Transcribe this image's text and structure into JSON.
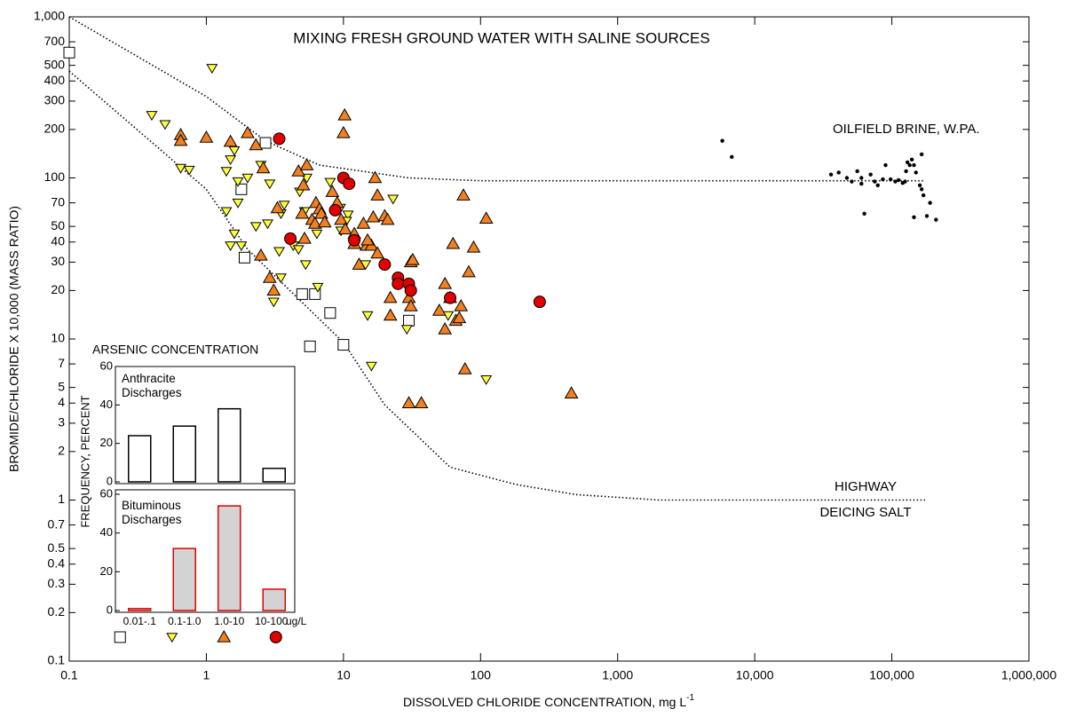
{
  "chart_data": [
    {
      "type": "scatter",
      "title": "MIXING FRESH GROUND WATER WITH SALINE SOURCES",
      "xlabel": "DISSOLVED CHLORIDE CONCENTRATION, mg L",
      "xlabel_superscript": "-1",
      "ylabel": "BROMIDE/CHLORIDE X 10,000 (MASS RATIO)",
      "xscale": "log",
      "yscale": "log",
      "xlim": [
        0.1,
        1000000
      ],
      "ylim": [
        0.1,
        1000
      ],
      "xticks": [
        0.1,
        1,
        10,
        100,
        {
          "value": 1000,
          "label": "1,000"
        },
        {
          "value": 10000,
          "label": "10,000"
        },
        {
          "value": 100000,
          "label": "100,000"
        },
        {
          "value": 1000000,
          "label": "1,000,000"
        }
      ],
      "yticks": [
        0.1,
        0.2,
        0.3,
        0.4,
        0.5,
        0.7,
        1,
        2,
        3,
        4,
        5,
        7,
        10,
        20,
        30,
        40,
        50,
        70,
        100,
        200,
        300,
        400,
        500,
        700,
        {
          "value": 1000,
          "label": "1,000"
        }
      ],
      "annotations": [
        "OILFIELD BRINE, W.PA.",
        "HIGHWAY",
        "DEICING SALT"
      ],
      "curves": [
        {
          "color": "#000000",
          "x": [
            0.1,
            1,
            2.7,
            6.7,
            30,
            100,
            175000
          ],
          "y": [
            1000,
            320,
            170,
            120,
            100,
            96,
            96
          ]
        },
        {
          "color": "#000000",
          "x": [
            0.1,
            1,
            2,
            10,
            20,
            60,
            180,
            500,
            2000,
            175000
          ],
          "y": [
            460,
            85,
            36,
            9.5,
            3.9,
            1.6,
            1.25,
            1.08,
            1.0,
            1.0
          ]
        }
      ],
      "series": [
        {
          "marker": "square",
          "color": "#ffffff",
          "x": [
            0.1,
            2.7,
            1.8,
            1.9,
            5,
            6.2,
            8,
            5.7,
            10,
            30
          ],
          "y": [
            600,
            165,
            85,
            32,
            19,
            19,
            14.5,
            9,
            9.2,
            13
          ]
        },
        {
          "marker": "triangle-down",
          "color": "#ffff40",
          "x": [
            1.1,
            0.4,
            0.5,
            0.65,
            0.75,
            1.5,
            1.4,
            1.6,
            1.7,
            2.0,
            2.5,
            2.9,
            1.4,
            1.7,
            2.3,
            2.8,
            1.6,
            1.5,
            1.8,
            3.4,
            4.3,
            3.5,
            3.7,
            4.7,
            5.3,
            3.1,
            3.5,
            4.8,
            5.4,
            5.2,
            6.4,
            6.5,
            8.0,
            9.5,
            10.8,
            9.6,
            15,
            16,
            29,
            14.5,
            23,
            58,
            110,
            10.5
          ],
          "y": [
            480,
            245,
            215,
            115,
            112,
            130,
            110,
            148,
            95,
            100,
            120,
            92,
            62,
            70,
            50,
            52,
            45,
            38,
            38,
            35,
            38,
            60,
            68,
            36,
            29,
            17,
            24,
            82,
            100,
            62,
            45,
            21,
            94,
            65,
            59,
            47,
            14,
            6.8,
            11.5,
            29,
            74,
            14,
            5.6,
            54
          ]
        },
        {
          "marker": "triangle-up",
          "color": "#f08020",
          "x": [
            0.65,
            0.65,
            1.0,
            1.5,
            2.0,
            2.3,
            2.6,
            3.3,
            2.5,
            2.9,
            3.1,
            4.7,
            5.4,
            5.1,
            5.0,
            5.9,
            6.3,
            6.7,
            6.2,
            6.9,
            7.3,
            5.2,
            8.3,
            9.0,
            9.6,
            10.2,
            10,
            10.3,
            12,
            12,
            13,
            14,
            14.7,
            16,
            17,
            17.7,
            16.5,
            17.7,
            20,
            21,
            22,
            22,
            31,
            32,
            30,
            31,
            50,
            55,
            55,
            60,
            63,
            66,
            70,
            72,
            75,
            77,
            82,
            89,
            110,
            460,
            30,
            37,
            15
          ],
          "y": [
            185,
            170,
            178,
            168,
            190,
            160,
            115,
            65,
            33,
            24,
            20,
            110,
            120,
            90,
            60,
            55,
            70,
            64,
            52,
            60,
            53,
            42,
            82,
            70,
            55,
            245,
            190,
            48,
            45,
            39,
            29,
            52,
            38,
            38,
            100,
            78,
            57,
            34,
            58,
            55,
            14,
            18,
            30,
            31,
            18,
            16,
            15,
            11.5,
            22,
            18,
            39,
            13,
            13.5,
            16,
            78,
            6.5,
            26,
            37,
            56,
            4.6,
            4,
            4,
            41
          ]
        },
        {
          "marker": "circle",
          "color": "#e00000",
          "x": [
            3.4,
            4.1,
            8.7,
            10,
            11,
            12,
            20,
            25,
            25,
            30,
            31,
            60,
            270
          ],
          "y": [
            175,
            42,
            63,
            100,
            92,
            41,
            29,
            24,
            22,
            22,
            20,
            18,
            17
          ]
        },
        {
          "marker": "dot",
          "color": "#000000",
          "x": [
            5800,
            6800,
            36000,
            41000,
            47000,
            51000,
            56000,
            60000,
            63000,
            70000,
            75000,
            79000,
            86000,
            90000,
            98000,
            106000,
            112000,
            120000,
            127000,
            130000,
            135000,
            140000,
            145000,
            150000,
            160000,
            165000,
            170000,
            165000,
            145000,
            180000,
            190000,
            210000,
            60000,
            125000
          ],
          "y": [
            170,
            135,
            105,
            108,
            100,
            95,
            110,
            100,
            60,
            105,
            95,
            90,
            98,
            120,
            98,
            95,
            97,
            93,
            110,
            125,
            120,
            130,
            120,
            108,
            90,
            85,
            78,
            140,
            57,
            58,
            70,
            55,
            92,
            95
          ]
        }
      ]
    },
    {
      "type": "bar",
      "heading": "ARSENIC CONCENTRATION",
      "ylabel": "FREQUENCY, PERCENT",
      "title": "Anthracite Discharges",
      "values": [
        24,
        29,
        38,
        7
      ],
      "color": "#ffffff",
      "edgecolor": "#000000",
      "ylim": [
        0,
        60
      ],
      "yticks": [
        0,
        20,
        40,
        60
      ]
    },
    {
      "type": "bar",
      "title": "Bituminous Discharges",
      "categories": [
        "0.01-.1",
        "0.1-1.0",
        "1.0-10",
        "10-100"
      ],
      "x_unit": "ug/L",
      "values": [
        1,
        32,
        54,
        11
      ],
      "color": "#d3d3d3",
      "edgecolor": "#e00000",
      "ylim": [
        0,
        60
      ],
      "yticks": [
        0,
        20,
        40,
        60
      ]
    }
  ]
}
